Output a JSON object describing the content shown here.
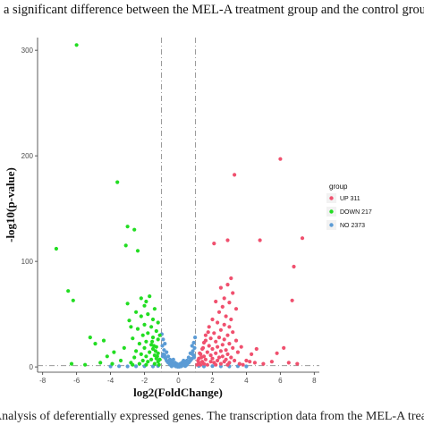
{
  "captions": {
    "top": "a significant difference between the MEL-A treatment group and the control group",
    "bottom": "Analysis of deferentially expressed genes. The transcription data from the MEL-A treatment"
  },
  "chart_data": {
    "type": "scatter",
    "title": "",
    "xlabel": "log2(FoldChange)",
    "ylabel": "-log10(p-value)",
    "xlim": [
      -8.3,
      8.3
    ],
    "ylim": [
      -5,
      312
    ],
    "x_ticks": [
      "-8",
      "-6",
      "-4",
      "-2",
      "0",
      "2",
      "4",
      "6",
      "8"
    ],
    "y_ticks": [
      "0",
      "100",
      "200",
      "300"
    ],
    "grid": false,
    "thresholds": {
      "x": [
        -1,
        1
      ],
      "y": 1.3
    },
    "legend": {
      "title": "group",
      "position": "right",
      "entries": [
        {
          "key": "up",
          "label": "UP 311",
          "color": "#f0506e"
        },
        {
          "key": "down",
          "label": "DOWN 217",
          "color": "#22dd22"
        },
        {
          "key": "no",
          "label": "NO 2373",
          "color": "#5b9bd5"
        }
      ]
    },
    "series": [
      {
        "name": "UP 311",
        "color": "#f0506e",
        "points": [
          [
            6.0,
            197
          ],
          [
            3.3,
            182
          ],
          [
            7.3,
            122
          ],
          [
            2.9,
            120
          ],
          [
            6.8,
            95
          ],
          [
            6.7,
            63
          ],
          [
            2.1,
            117
          ],
          [
            4.8,
            120
          ],
          [
            3.1,
            84
          ],
          [
            2.9,
            78
          ],
          [
            3.2,
            70
          ],
          [
            2.5,
            75
          ],
          [
            2.7,
            65
          ],
          [
            3.0,
            61
          ],
          [
            2.2,
            62
          ],
          [
            2.6,
            57
          ],
          [
            3.4,
            55
          ],
          [
            2.4,
            52
          ],
          [
            2.8,
            48
          ],
          [
            3.1,
            45
          ],
          [
            2.0,
            45
          ],
          [
            2.3,
            42
          ],
          [
            2.7,
            40
          ],
          [
            3.0,
            38
          ],
          [
            1.8,
            38
          ],
          [
            2.5,
            35
          ],
          [
            3.2,
            33
          ],
          [
            2.1,
            32
          ],
          [
            1.6,
            30
          ],
          [
            2.9,
            30
          ],
          [
            2.4,
            28
          ],
          [
            1.9,
            27
          ],
          [
            2.7,
            26
          ],
          [
            3.4,
            25
          ],
          [
            2.2,
            24
          ],
          [
            1.5,
            23
          ],
          [
            3.0,
            22
          ],
          [
            2.6,
            21
          ],
          [
            1.8,
            20
          ],
          [
            2.3,
            19
          ],
          [
            3.2,
            18
          ],
          [
            1.4,
            17
          ],
          [
            2.0,
            17
          ],
          [
            2.8,
            16
          ],
          [
            2.5,
            15
          ],
          [
            1.7,
            14
          ],
          [
            3.5,
            14
          ],
          [
            2.2,
            13
          ],
          [
            1.3,
            12
          ],
          [
            2.9,
            12
          ],
          [
            1.9,
            11
          ],
          [
            2.6,
            10
          ],
          [
            1.5,
            10
          ],
          [
            3.1,
            9
          ],
          [
            2.4,
            9
          ],
          [
            1.2,
            8
          ],
          [
            2.0,
            8
          ],
          [
            2.8,
            7
          ],
          [
            1.6,
            7
          ],
          [
            3.3,
            6
          ],
          [
            2.3,
            6
          ],
          [
            1.4,
            5
          ],
          [
            1.9,
            5
          ],
          [
            2.7,
            5
          ],
          [
            4.2,
            5
          ],
          [
            1.2,
            4
          ],
          [
            2.1,
            4
          ],
          [
            3.0,
            4
          ],
          [
            1.5,
            3
          ],
          [
            2.5,
            3
          ],
          [
            3.6,
            3
          ],
          [
            4.5,
            4
          ],
          [
            5.0,
            3
          ],
          [
            6.5,
            4
          ],
          [
            7.0,
            3
          ],
          [
            1.3,
            2
          ],
          [
            2.2,
            2
          ],
          [
            3.8,
            2
          ],
          [
            4.0,
            6
          ],
          [
            5.5,
            5
          ],
          [
            6.2,
            18
          ],
          [
            5.8,
            13
          ],
          [
            4.6,
            17
          ],
          [
            4.3,
            12
          ],
          [
            3.7,
            19
          ],
          [
            1.1,
            2
          ],
          [
            1.7,
            2
          ],
          [
            2.9,
            2
          ],
          [
            1.35,
            9
          ],
          [
            1.25,
            13
          ],
          [
            1.45,
            18
          ],
          [
            1.15,
            6
          ],
          [
            1.6,
            25
          ],
          [
            1.75,
            33
          ]
        ]
      },
      {
        "name": "DOWN 217",
        "color": "#22dd22",
        "points": [
          [
            -6.0,
            305
          ],
          [
            -3.6,
            175
          ],
          [
            -3.0,
            133
          ],
          [
            -2.6,
            130
          ],
          [
            -7.2,
            112
          ],
          [
            -3.1,
            115
          ],
          [
            -2.4,
            110
          ],
          [
            -6.5,
            72
          ],
          [
            -6.2,
            63
          ],
          [
            -2.2,
            65
          ],
          [
            -1.9,
            62
          ],
          [
            -1.7,
            67
          ],
          [
            -2.0,
            58
          ],
          [
            -2.5,
            52
          ],
          [
            -1.4,
            55
          ],
          [
            -1.8,
            50
          ],
          [
            -2.2,
            48
          ],
          [
            -1.5,
            45
          ],
          [
            -2.9,
            44
          ],
          [
            -1.2,
            42
          ],
          [
            -2.0,
            40
          ],
          [
            -1.6,
            38
          ],
          [
            -2.4,
            36
          ],
          [
            -1.3,
            34
          ],
          [
            -1.8,
            32
          ],
          [
            -2.1,
            30
          ],
          [
            -1.5,
            28
          ],
          [
            -2.7,
            27
          ],
          [
            -1.2,
            26
          ],
          [
            -1.9,
            24
          ],
          [
            -2.3,
            22
          ],
          [
            -1.6,
            21
          ],
          [
            -1.3,
            19
          ],
          [
            -2.0,
            18
          ],
          [
            -3.2,
            18
          ],
          [
            -1.5,
            17
          ],
          [
            -2.5,
            15
          ],
          [
            -1.7,
            14
          ],
          [
            -1.2,
            13
          ],
          [
            -2.2,
            12
          ],
          [
            -4.4,
            25
          ],
          [
            -5.2,
            28
          ],
          [
            -4.9,
            22
          ],
          [
            -3.8,
            14
          ],
          [
            -4.2,
            10
          ],
          [
            -1.4,
            11
          ],
          [
            -1.9,
            10
          ],
          [
            -2.6,
            9
          ],
          [
            -1.3,
            8
          ],
          [
            -1.6,
            7
          ],
          [
            -2.1,
            6
          ],
          [
            -3.4,
            6
          ],
          [
            -1.2,
            5
          ],
          [
            -1.8,
            5
          ],
          [
            -2.8,
            4
          ],
          [
            -1.4,
            3
          ],
          [
            -2.3,
            3
          ],
          [
            -3.9,
            3
          ],
          [
            -4.6,
            4
          ],
          [
            -5.5,
            2
          ],
          [
            -6.3,
            3
          ],
          [
            -1.15,
            2
          ],
          [
            -1.9,
            2
          ],
          [
            -2.7,
            2
          ],
          [
            -1.1,
            7
          ],
          [
            -1.25,
            10
          ],
          [
            -1.35,
            15
          ],
          [
            -1.45,
            20
          ],
          [
            -1.55,
            24
          ],
          [
            -1.1,
            30
          ],
          [
            -2.8,
            38
          ],
          [
            -3.0,
            60
          ]
        ]
      },
      {
        "name": "NO 2373",
        "color": "#5b9bd5",
        "points": [
          [
            0.0,
            0.5
          ],
          [
            0.2,
            1
          ],
          [
            -0.2,
            1.2
          ],
          [
            0.4,
            0.8
          ],
          [
            -0.4,
            0.6
          ],
          [
            0.1,
            2
          ],
          [
            -0.1,
            2.5
          ],
          [
            0.3,
            3
          ],
          [
            -0.3,
            3.5
          ],
          [
            0.5,
            2
          ],
          [
            -0.5,
            2.2
          ],
          [
            0.6,
            4
          ],
          [
            -0.6,
            4
          ],
          [
            0.7,
            6
          ],
          [
            -0.7,
            6
          ],
          [
            0.8,
            8
          ],
          [
            -0.8,
            9
          ],
          [
            0.9,
            11
          ],
          [
            -0.9,
            12
          ],
          [
            0.85,
            15
          ],
          [
            -0.85,
            16
          ],
          [
            0.95,
            18
          ],
          [
            -0.95,
            20
          ],
          [
            0.9,
            23
          ],
          [
            -0.9,
            26
          ],
          [
            0.8,
            20
          ],
          [
            -0.8,
            22
          ],
          [
            0.7,
            13
          ],
          [
            -0.7,
            14
          ],
          [
            0.6,
            9
          ],
          [
            -0.6,
            10
          ],
          [
            0.5,
            6
          ],
          [
            -0.5,
            7
          ],
          [
            0.4,
            5
          ],
          [
            -0.4,
            5
          ],
          [
            0.3,
            6
          ],
          [
            -0.3,
            7
          ],
          [
            0.2,
            4
          ],
          [
            -0.2,
            4
          ],
          [
            0.1,
            3
          ],
          [
            -0.1,
            3
          ],
          [
            0.05,
            1
          ],
          [
            -0.05,
            1
          ],
          [
            0.15,
            0.5
          ],
          [
            -0.15,
            0.5
          ],
          [
            0.25,
            1.5
          ],
          [
            -0.25,
            1.5
          ],
          [
            0.35,
            2
          ],
          [
            -0.35,
            2
          ],
          [
            0.45,
            3
          ],
          [
            -0.45,
            3
          ],
          [
            0.55,
            4
          ],
          [
            -0.55,
            4
          ],
          [
            0.65,
            5
          ],
          [
            -0.65,
            5
          ],
          [
            0.75,
            7
          ],
          [
            -0.75,
            8
          ],
          [
            0.98,
            28
          ],
          [
            -0.98,
            31
          ],
          [
            0.92,
            9
          ],
          [
            -0.92,
            10
          ],
          [
            0.82,
            12
          ],
          [
            -0.82,
            11
          ],
          [
            1.5,
            0.5
          ],
          [
            2.0,
            0.8
          ],
          [
            2.5,
            0.6
          ],
          [
            3.0,
            0.5
          ],
          [
            3.5,
            0.7
          ],
          [
            4.0,
            0.5
          ],
          [
            -1.5,
            0.5
          ],
          [
            -2.0,
            0.7
          ],
          [
            -2.5,
            0.6
          ],
          [
            -3.0,
            0.5
          ],
          [
            -3.5,
            0.7
          ],
          [
            -4.0,
            0.5
          ],
          [
            1.2,
            0.9
          ],
          [
            -1.2,
            0.9
          ],
          [
            0.05,
            0.2
          ],
          [
            -0.05,
            0.2
          ]
        ]
      }
    ]
  }
}
